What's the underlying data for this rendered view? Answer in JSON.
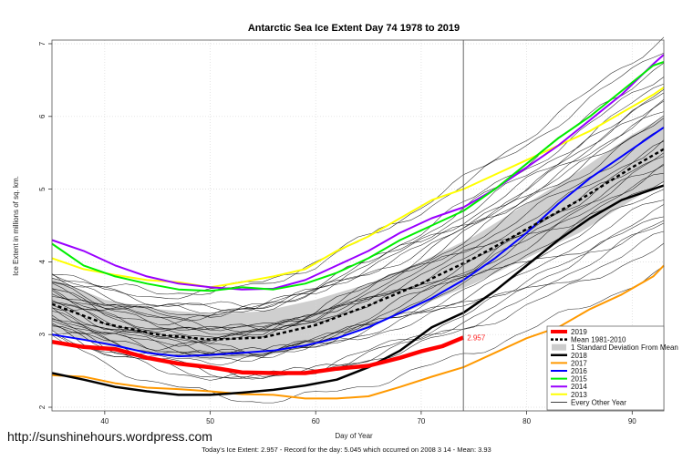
{
  "chart_data": {
    "type": "line",
    "title": "Antarctic Sea Ice Extent Day 74 1978 to 2019",
    "xlabel": "Day of Year",
    "ylabel": "Ice Extent in millions of sq. km.",
    "xlim": [
      35,
      93
    ],
    "ylim": [
      1.95,
      7.05
    ],
    "xticks": [
      40,
      50,
      60,
      70,
      80,
      90
    ],
    "yticks": [
      2,
      3,
      4,
      5,
      6,
      7
    ],
    "vline_day": 74,
    "grid": true,
    "legend_position": "bottom-right",
    "current_annotation": {
      "day": 74,
      "value": 2.957,
      "text": "2.957",
      "color": "#ff2020"
    },
    "std_band": {
      "x": [
        35,
        40,
        45,
        50,
        55,
        60,
        65,
        70,
        75,
        80,
        85,
        90,
        93
      ],
      "lower": [
        3.05,
        2.85,
        2.72,
        2.65,
        2.7,
        2.85,
        3.1,
        3.4,
        3.7,
        4.05,
        4.4,
        4.85,
        5.1
      ],
      "upper": [
        3.78,
        3.48,
        3.35,
        3.28,
        3.32,
        3.48,
        3.7,
        4.0,
        4.35,
        4.8,
        5.25,
        5.75,
        6.0
      ]
    },
    "series": [
      {
        "name": "2019",
        "color": "#ff0000",
        "width": 4.5,
        "dash": "",
        "x": [
          35,
          38,
          41,
          44,
          47,
          50,
          53,
          56,
          59,
          62,
          65,
          68,
          70,
          72,
          74
        ],
        "y": [
          2.9,
          2.83,
          2.8,
          2.68,
          2.6,
          2.55,
          2.48,
          2.47,
          2.47,
          2.53,
          2.57,
          2.68,
          2.77,
          2.84,
          2.96
        ]
      },
      {
        "name": "Mean 1981-2010",
        "color": "#000000",
        "width": 2.5,
        "dash": "4,3",
        "x": [
          35,
          40,
          45,
          50,
          55,
          60,
          65,
          70,
          75,
          80,
          85,
          90,
          93
        ],
        "y": [
          3.42,
          3.15,
          3.0,
          2.93,
          2.96,
          3.13,
          3.4,
          3.7,
          4.05,
          4.45,
          4.85,
          5.3,
          5.55
        ]
      },
      {
        "name": "2018",
        "color": "#000000",
        "width": 2.5,
        "dash": "",
        "x": [
          35,
          38,
          41,
          44,
          47,
          50,
          53,
          56,
          59,
          62,
          65,
          68,
          71,
          74,
          77,
          80,
          83,
          86,
          89,
          92,
          93
        ],
        "y": [
          2.47,
          2.38,
          2.28,
          2.22,
          2.17,
          2.17,
          2.2,
          2.24,
          2.3,
          2.38,
          2.55,
          2.78,
          3.1,
          3.3,
          3.6,
          3.95,
          4.3,
          4.6,
          4.85,
          5.0,
          5.05
        ]
      },
      {
        "name": "2017",
        "color": "#ff9900",
        "width": 2,
        "dash": "",
        "x": [
          35,
          38,
          41,
          44,
          47,
          50,
          53,
          56,
          59,
          62,
          65,
          68,
          71,
          74,
          77,
          80,
          83,
          86,
          89,
          92,
          93
        ],
        "y": [
          2.44,
          2.42,
          2.33,
          2.27,
          2.25,
          2.22,
          2.18,
          2.17,
          2.12,
          2.12,
          2.15,
          2.28,
          2.42,
          2.55,
          2.75,
          2.95,
          3.1,
          3.35,
          3.55,
          3.8,
          3.95
        ]
      },
      {
        "name": "2016",
        "color": "#0000ff",
        "width": 2,
        "dash": "",
        "x": [
          35,
          38,
          41,
          44,
          47,
          50,
          53,
          56,
          59,
          62,
          65,
          68,
          71,
          74,
          77,
          80,
          83,
          86,
          89,
          92,
          93
        ],
        "y": [
          3.0,
          2.93,
          2.85,
          2.75,
          2.7,
          2.72,
          2.75,
          2.78,
          2.85,
          2.95,
          3.1,
          3.3,
          3.5,
          3.75,
          4.05,
          4.4,
          4.8,
          5.15,
          5.45,
          5.75,
          5.85
        ]
      },
      {
        "name": "2015",
        "color": "#00ee00",
        "width": 2,
        "dash": "",
        "x": [
          35,
          38,
          41,
          44,
          47,
          50,
          53,
          56,
          59,
          62,
          65,
          68,
          71,
          74,
          77,
          80,
          83,
          86,
          89,
          92,
          93
        ],
        "y": [
          4.25,
          3.95,
          3.8,
          3.7,
          3.62,
          3.6,
          3.65,
          3.62,
          3.7,
          3.85,
          4.05,
          4.3,
          4.5,
          4.7,
          5.0,
          5.35,
          5.7,
          6.0,
          6.35,
          6.7,
          6.75
        ]
      },
      {
        "name": "2014",
        "color": "#9900ff",
        "width": 2,
        "dash": "",
        "x": [
          35,
          38,
          41,
          44,
          47,
          50,
          53,
          56,
          59,
          62,
          65,
          68,
          71,
          74,
          77,
          80,
          83,
          86,
          89,
          92,
          93
        ],
        "y": [
          4.3,
          4.15,
          3.95,
          3.8,
          3.7,
          3.65,
          3.62,
          3.63,
          3.75,
          3.95,
          4.15,
          4.4,
          4.6,
          4.75,
          5.0,
          5.3,
          5.6,
          5.95,
          6.3,
          6.72,
          6.85
        ]
      },
      {
        "name": "2013",
        "color": "#ffff00",
        "width": 2,
        "dash": "",
        "x": [
          35,
          38,
          41,
          44,
          47,
          50,
          53,
          56,
          59,
          62,
          65,
          68,
          71,
          74,
          77,
          80,
          83,
          86,
          89,
          92,
          93
        ],
        "y": [
          4.05,
          3.9,
          3.82,
          3.75,
          3.72,
          3.65,
          3.72,
          3.8,
          3.9,
          4.15,
          4.35,
          4.6,
          4.85,
          5.0,
          5.2,
          5.4,
          5.6,
          5.8,
          6.05,
          6.3,
          6.4
        ]
      }
    ],
    "legend": [
      {
        "label": "2019",
        "color": "#ff0000",
        "kind": "line",
        "width": 4,
        "dash": ""
      },
      {
        "label": "Mean 1981-2010",
        "color": "#000000",
        "kind": "line",
        "width": 2.5,
        "dash": "3,2"
      },
      {
        "label": "1 Standard Deviation From Mean",
        "color": "#cccccc",
        "kind": "box"
      },
      {
        "label": "2018",
        "color": "#000000",
        "kind": "line",
        "width": 2.5,
        "dash": ""
      },
      {
        "label": "2017",
        "color": "#ff9900",
        "kind": "line",
        "width": 2,
        "dash": ""
      },
      {
        "label": "2016",
        "color": "#0000ff",
        "kind": "line",
        "width": 2,
        "dash": ""
      },
      {
        "label": "2015",
        "color": "#00ee00",
        "kind": "line",
        "width": 2,
        "dash": ""
      },
      {
        "label": "2014",
        "color": "#9900ff",
        "kind": "line",
        "width": 2,
        "dash": ""
      },
      {
        "label": "2013",
        "color": "#ffff00",
        "kind": "line",
        "width": 2,
        "dash": ""
      },
      {
        "label": "Every Other Year",
        "color": "#000000",
        "kind": "line",
        "width": 0.8,
        "dash": ""
      }
    ],
    "other_years_color": "#000000"
  },
  "site": "http://sunshinehours.wordpress.com",
  "footer": "Today's Ice Extent: 2.957  - Record for the day: 5.045 which occurred on 2008 3 14  - Mean: 3.93"
}
